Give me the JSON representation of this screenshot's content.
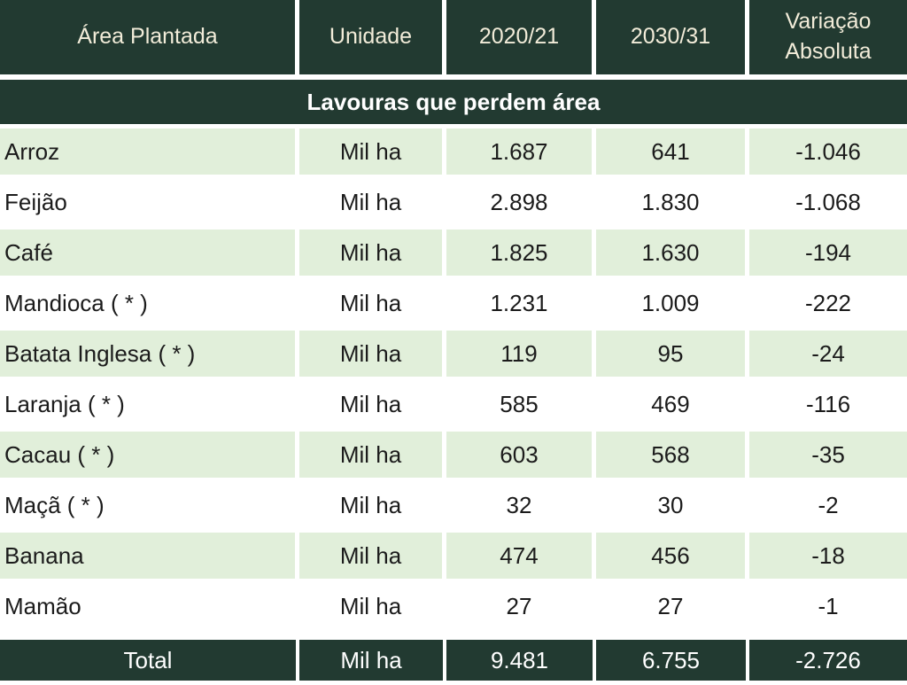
{
  "chart_data": {
    "type": "table",
    "title": "Área Plantada — Lavouras que perdem área",
    "columns": [
      "Área Plantada",
      "Unidade",
      "2020/21",
      "2030/31",
      "Variação Absoluta"
    ],
    "section": "Lavouras que perdem área",
    "rows": [
      [
        "Arroz",
        "Mil ha",
        "1.687",
        "641",
        "-1.046"
      ],
      [
        "Feijão",
        "Mil ha",
        "2.898",
        "1.830",
        "-1.068"
      ],
      [
        "Café",
        "Mil ha",
        "1.825",
        "1.630",
        "-194"
      ],
      [
        "Mandioca ( * )",
        "Mil ha",
        "1.231",
        "1.009",
        "-222"
      ],
      [
        "Batata Inglesa ( * )",
        "Mil ha",
        "119",
        "95",
        "-24"
      ],
      [
        "Laranja ( * )",
        "Mil ha",
        "585",
        "469",
        "-116"
      ],
      [
        "Cacau ( * )",
        "Mil ha",
        "603",
        "568",
        "-35"
      ],
      [
        "Maçã ( * )",
        "Mil ha",
        "32",
        "30",
        "-2"
      ],
      [
        "Banana",
        "Mil ha",
        "474",
        "456",
        "-18"
      ],
      [
        "Mamão",
        "Mil ha",
        "27",
        "27",
        "-1"
      ]
    ],
    "total": [
      "Total",
      "Mil ha",
      "9.481",
      "6.755",
      "-2.726"
    ],
    "layout_hints": {
      "zebra_striping": true,
      "header_position": "top",
      "total_position": "bottom"
    }
  },
  "colors": {
    "header_bg": "#223a31",
    "header_text": "#f2ecd9",
    "section_bg": "#223a31",
    "section_text": "#ffffff",
    "row_green_bg": "#e1efda",
    "row_white_bg": "#ffffff",
    "body_text": "#1b1b1b",
    "gridline": "#ffffff"
  }
}
